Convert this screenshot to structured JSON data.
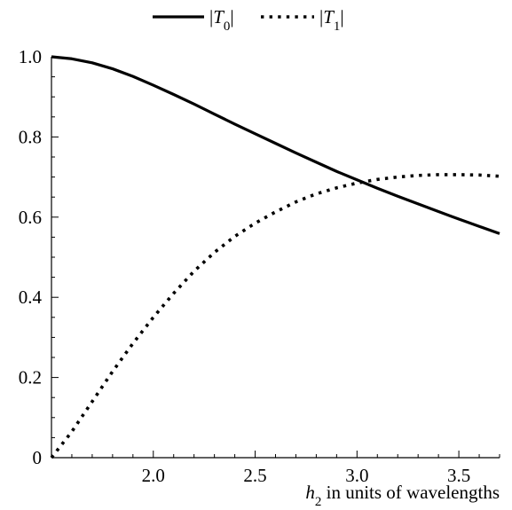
{
  "chart_data": {
    "type": "line",
    "title": "",
    "xlabel": {
      "symbol": "h",
      "subscript": "2",
      "text": " in units of wavelengths"
    },
    "ylabel": "",
    "xlim": [
      1.5,
      3.7
    ],
    "ylim": [
      0,
      1.0
    ],
    "x_ticks": [
      2.0,
      2.5,
      3.0,
      3.5
    ],
    "x_tick_labels": [
      "2.0",
      "2.5",
      "3.0",
      "3.5"
    ],
    "y_ticks": [
      0,
      0.2,
      0.4,
      0.6,
      0.8,
      1.0
    ],
    "y_tick_labels": [
      "0",
      "0.2",
      "0.4",
      "0.6",
      "0.8",
      "1.0"
    ],
    "grid": false,
    "legend_position": "top-center",
    "series": [
      {
        "name": "|T0|",
        "legend_parts": {
          "bar": "|",
          "symbol": "T",
          "subscript": "0",
          "end": "|"
        },
        "style": "solid",
        "color": "#000000",
        "x": [
          1.5,
          1.6,
          1.7,
          1.8,
          1.9,
          2.0,
          2.1,
          2.2,
          2.3,
          2.4,
          2.5,
          2.6,
          2.7,
          2.8,
          2.9,
          3.0,
          3.1,
          3.2,
          3.3,
          3.4,
          3.5,
          3.6,
          3.7
        ],
        "y": [
          1.0,
          0.995,
          0.985,
          0.97,
          0.951,
          0.929,
          0.906,
          0.882,
          0.857,
          0.832,
          0.808,
          0.784,
          0.76,
          0.737,
          0.714,
          0.693,
          0.672,
          0.652,
          0.633,
          0.614,
          0.595,
          0.577,
          0.559
        ]
      },
      {
        "name": "|T1|",
        "legend_parts": {
          "bar": "|",
          "symbol": "T",
          "subscript": "1",
          "end": "|"
        },
        "style": "dotted",
        "color": "#000000",
        "x": [
          1.5,
          1.6,
          1.7,
          1.8,
          1.9,
          2.0,
          2.1,
          2.2,
          2.3,
          2.4,
          2.5,
          2.6,
          2.7,
          2.8,
          2.9,
          3.0,
          3.1,
          3.2,
          3.3,
          3.4,
          3.5,
          3.6,
          3.7
        ],
        "y": [
          0.0,
          0.065,
          0.14,
          0.215,
          0.285,
          0.35,
          0.41,
          0.465,
          0.512,
          0.552,
          0.585,
          0.613,
          0.638,
          0.658,
          0.673,
          0.685,
          0.694,
          0.7,
          0.704,
          0.706,
          0.706,
          0.705,
          0.702
        ]
      }
    ]
  }
}
